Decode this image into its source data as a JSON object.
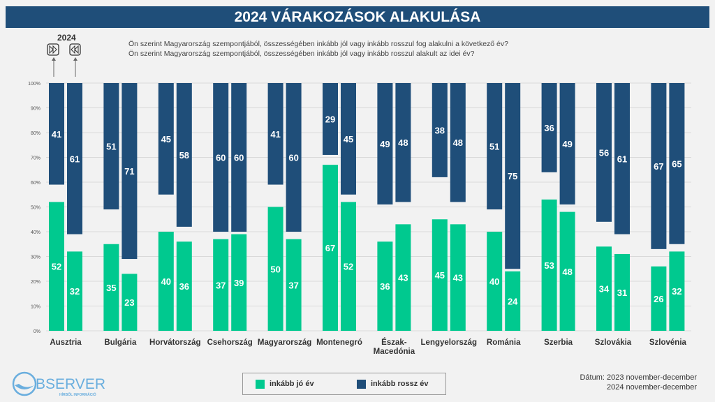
{
  "title": "2024 VÁRAKOZÁSOK ALAKULÁSA",
  "marker": {
    "year": "2024",
    "icons": [
      "fast-forward-icon",
      "rewind-icon"
    ]
  },
  "questions": [
    "Ön szerint Magyarország szempontjából, összességében inkább jól vagy inkább rosszul fog alakulni a következő év?",
    "Ön szerint Magyarország szempontjából, összességében inkább jól vagy inkább rosszul alakult az idei év?"
  ],
  "legend": {
    "good": "inkább jó év",
    "bad": "inkább rossz év"
  },
  "date": {
    "label": "Dátum: 2023 november-december",
    "line2": "2024 november-december"
  },
  "logo": {
    "text": "OBSERVER",
    "tagline": "HÍRBŐL INFORMÁCIÓ"
  },
  "colors": {
    "good": "#00c98f",
    "bad": "#1f4e79",
    "title": "#1f4e79"
  },
  "chart_data": {
    "type": "bar",
    "stacked": "green from 0%, blue from 100%",
    "ylim": [
      0,
      100
    ],
    "yticks": [
      "0%",
      "10%",
      "20%",
      "30%",
      "40%",
      "50%",
      "60%",
      "70%",
      "80%",
      "90%",
      "100%"
    ],
    "grid": true,
    "legend_position": "bottom",
    "categories": [
      "Ausztria",
      "Bulgária",
      "Horvátország",
      "Csehország",
      "Magyarország",
      "Montenegró",
      "Észak-Macedónia",
      "Lengyelország",
      "Románia",
      "Szerbia",
      "Szlovákia",
      "Szlovénia"
    ],
    "series": [
      {
        "name": "inkább jó év",
        "bar": "next year",
        "values": [
          52,
          35,
          40,
          37,
          50,
          67,
          36,
          45,
          40,
          53,
          34,
          26
        ]
      },
      {
        "name": "inkább rossz év",
        "bar": "next year",
        "values": [
          41,
          51,
          45,
          60,
          41,
          29,
          49,
          38,
          51,
          36,
          56,
          67
        ]
      },
      {
        "name": "inkább jó év",
        "bar": "this year",
        "values": [
          32,
          23,
          36,
          39,
          37,
          52,
          43,
          43,
          24,
          48,
          31,
          32
        ]
      },
      {
        "name": "inkább rossz év",
        "bar": "this year",
        "values": [
          61,
          71,
          58,
          60,
          60,
          45,
          48,
          48,
          75,
          49,
          61,
          65
        ]
      }
    ]
  }
}
